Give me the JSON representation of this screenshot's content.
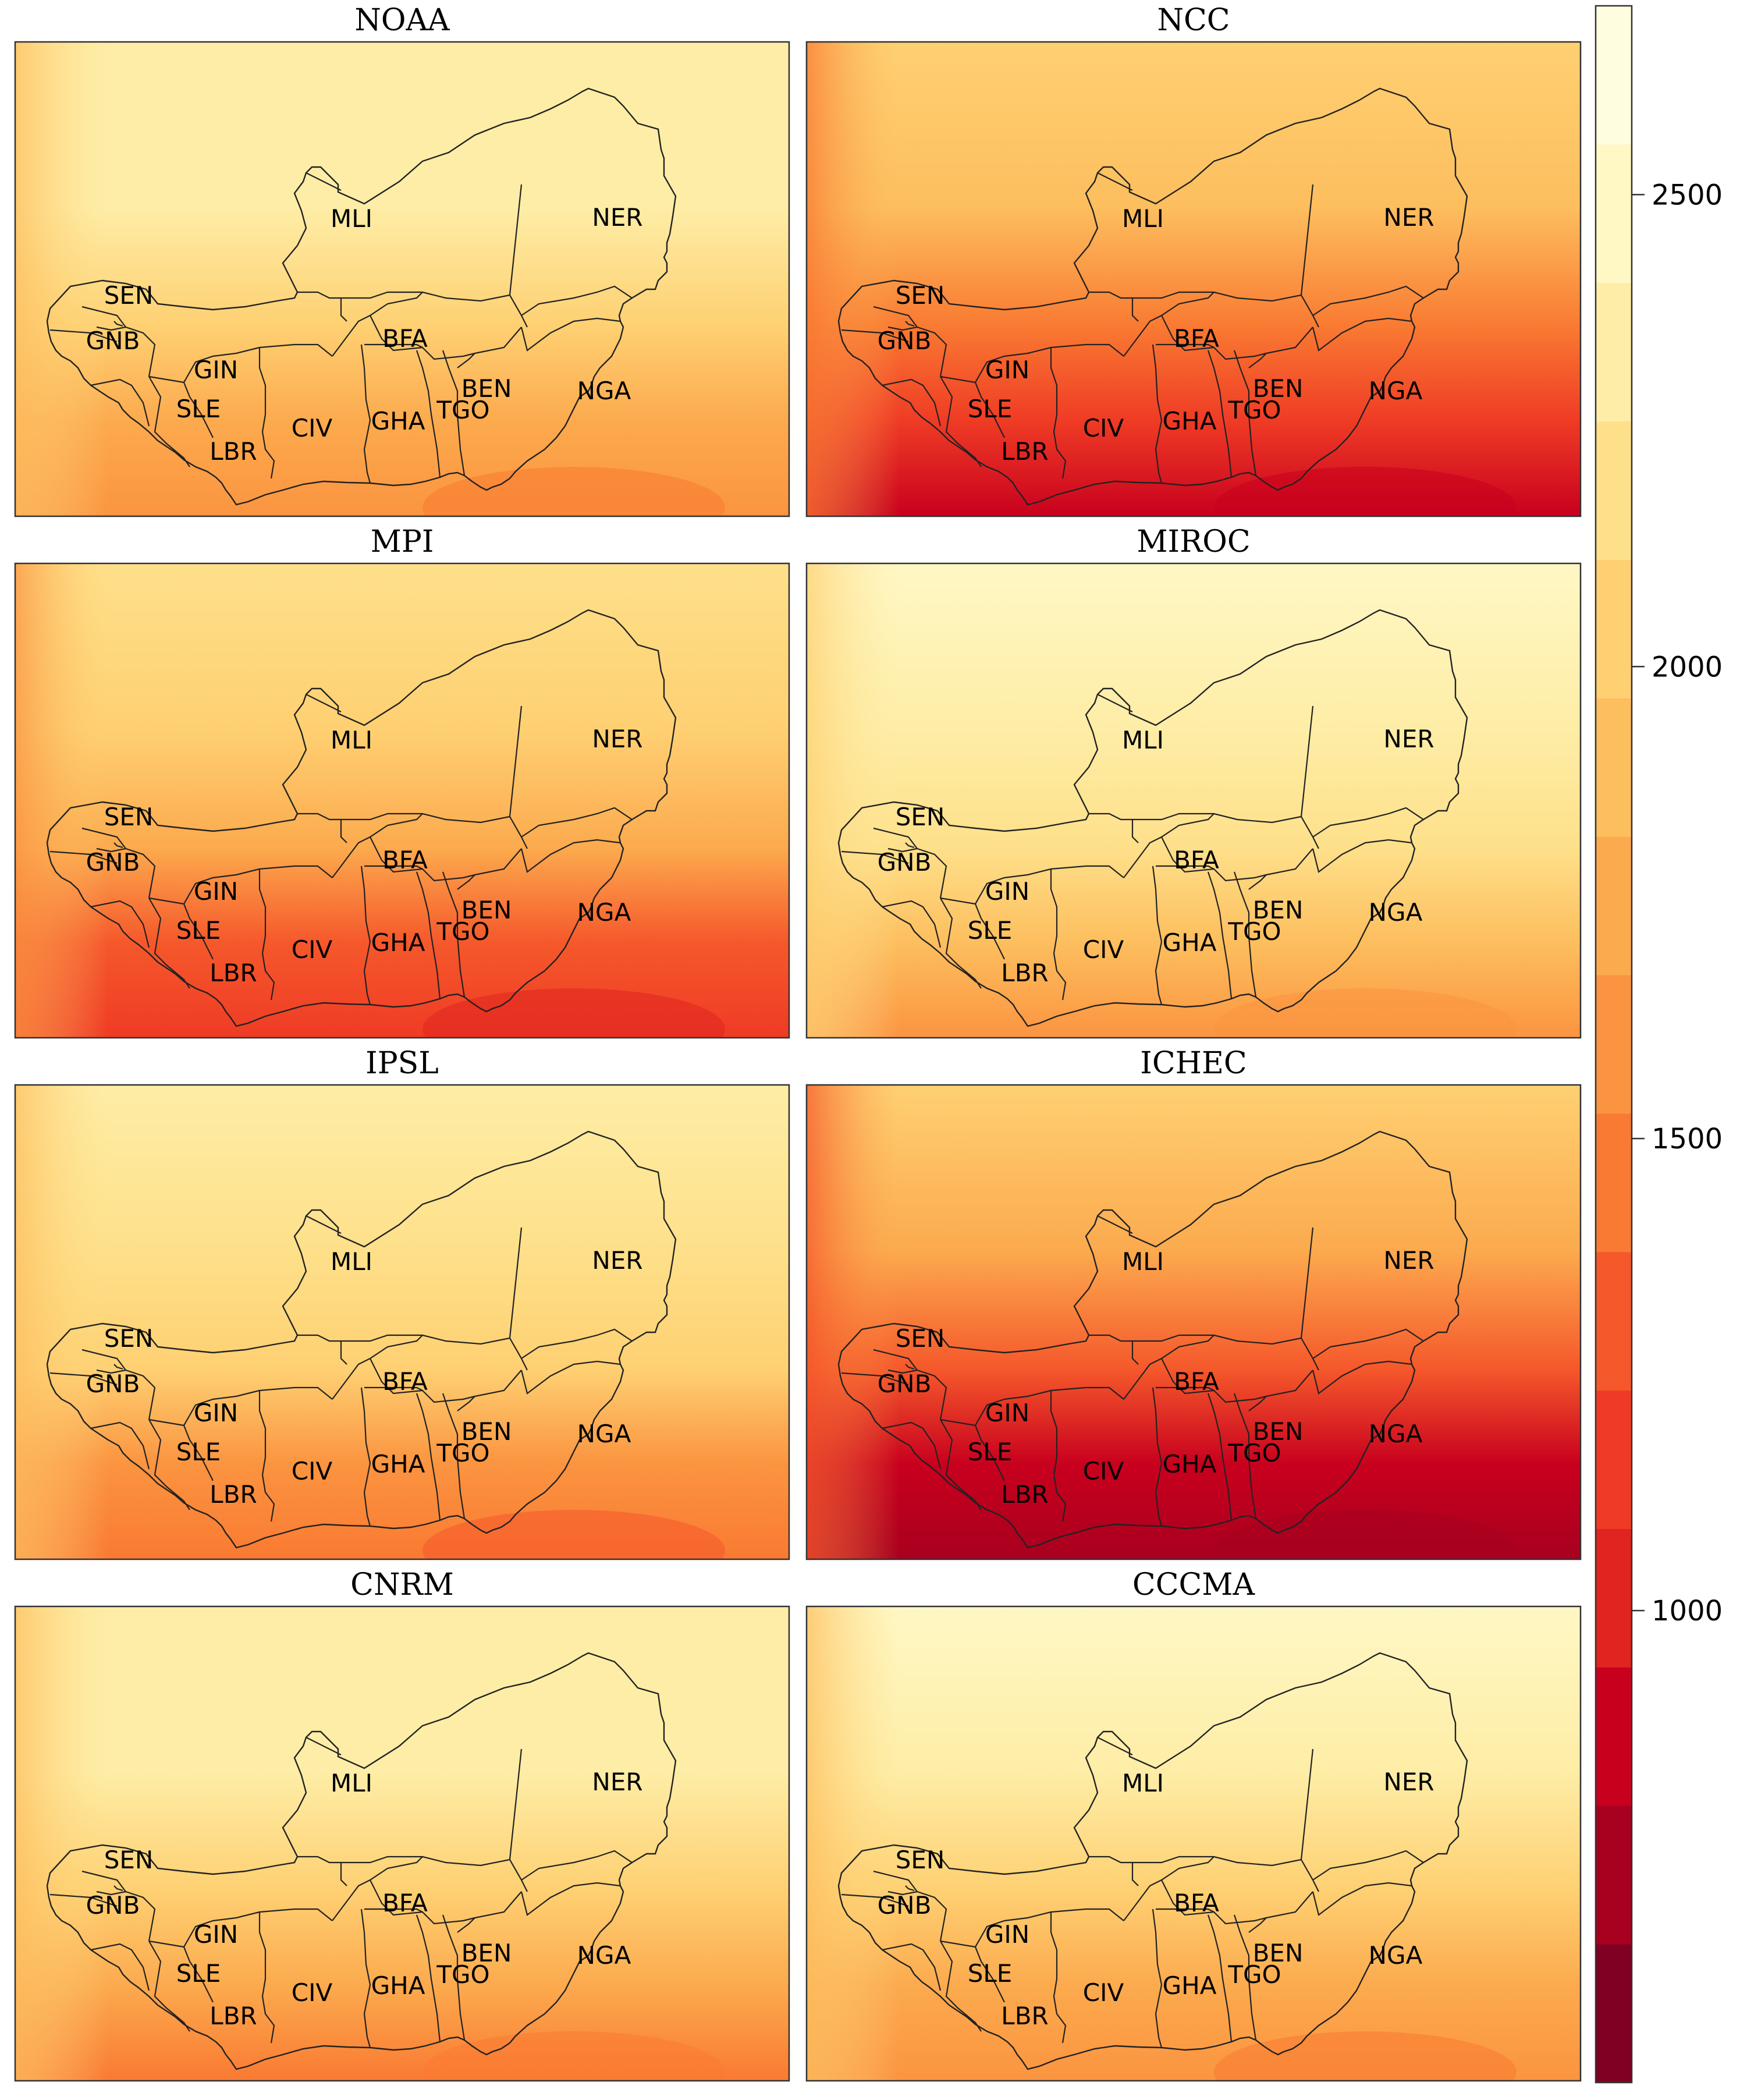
{
  "panels": [
    {
      "title": "NOAA",
      "intensity": 0.15
    },
    {
      "title": "NCC",
      "intensity": 0.8
    },
    {
      "title": "MPI",
      "intensity": 0.55
    },
    {
      "title": "MIROC",
      "intensity": 0.05
    },
    {
      "title": "IPSL",
      "intensity": 0.25
    },
    {
      "title": "ICHEC",
      "intensity": 0.95
    },
    {
      "title": "CNRM",
      "intensity": 0.2
    },
    {
      "title": "CCCMA",
      "intensity": 0.12
    }
  ],
  "country_labels": [
    "MLI",
    "NER",
    "SEN",
    "GNB",
    "BFA",
    "GIN",
    "BEN",
    "NGA",
    "SLE",
    "TGO",
    "CIV",
    "GHA",
    "LBR"
  ],
  "colorbar": {
    "ticks": [
      {
        "value": 2500,
        "label": "2500"
      },
      {
        "value": 2000,
        "label": "2000"
      },
      {
        "value": 1500,
        "label": "1500"
      },
      {
        "value": 1000,
        "label": "1000"
      }
    ],
    "min": 500,
    "max": 2700,
    "colors": [
      "#7f0022",
      "#a8001f",
      "#c8001e",
      "#e0241f",
      "#ef3b25",
      "#f5582b",
      "#f97a32",
      "#fb9440",
      "#fcaa4e",
      "#fdbe5e",
      "#fed072",
      "#fee08a",
      "#feeda6",
      "#fff7c4",
      "#fffde0"
    ]
  }
}
